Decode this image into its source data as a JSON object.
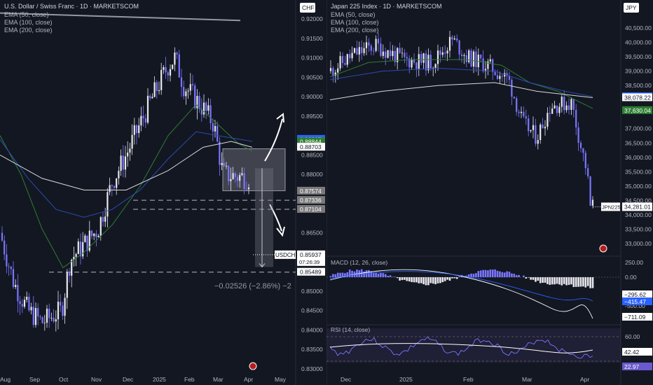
{
  "colors": {
    "bg": "#131722",
    "up": "#e8e8ee",
    "down": "#7b76ff",
    "ema50": "#2e7d32",
    "ema100": "#2c4bb0",
    "ema200": "#d9d9d9",
    "grid": "#1e2230",
    "text": "#b2b5be"
  },
  "chart_data": [
    {
      "type": "candlestick",
      "title": "U.S. Dollar / Swiss Franc · 1D · MARKETSCOM",
      "legend": [
        "EMA (50, close)",
        "EMA (100, close)",
        "EMA (200, close)"
      ],
      "currency": "CHF",
      "ylim": [
        0.83,
        0.925
      ],
      "y_ticks": [
        "0.92000",
        "0.91500",
        "0.91000",
        "0.90500",
        "0.90000",
        "0.89500",
        "0.88500",
        "0.88000",
        "0.86500",
        "0.85000",
        "0.84500",
        "0.84000",
        "0.83500",
        "0.83000"
      ],
      "x_ticks": [
        "Aug",
        "Sep",
        "Oct",
        "Nov",
        "Dec",
        "2025",
        "Feb",
        "Mar",
        "Apr",
        "May"
      ],
      "symbol": "USDCHF",
      "price": 0.85937,
      "price_text": "0.85937",
      "countdown": "07:26:39",
      "measure_text": "−0.02526 (−2.86%) −2",
      "levels": [
        {
          "text": "0.88907",
          "value": 0.88907,
          "color": "#2962ff"
        },
        {
          "text": "0.88844",
          "value": 0.88844,
          "color": "#2e7d32"
        },
        {
          "text": "0.88708",
          "value": 0.88708,
          "color": "#7a7a7a"
        },
        {
          "text": "0.88703",
          "value": 0.88703,
          "color": "#ffffff"
        },
        {
          "text": "0.87574",
          "value": 0.87574,
          "color": "#7a7a7a"
        },
        {
          "text": "0.87336",
          "value": 0.87336,
          "color": "#7a7a7a"
        },
        {
          "text": "0.87104",
          "value": 0.87104,
          "color": "#7a7a7a"
        },
        {
          "text": "0.85489",
          "value": 0.85489,
          "color": "#ffffff"
        }
      ],
      "dashed_levels": [
        0.87336,
        0.87104,
        0.85489
      ],
      "resistance_line": [
        0.9215,
        0.9196
      ],
      "box": [
        0.8758,
        0.8866
      ],
      "target": [
        0.8816,
        0.8562
      ]
    },
    {
      "type": "candlestick",
      "title": "Japan 225 Index · 1D · MARKETSCOM",
      "legend": [
        "EMA (50, close)",
        "EMA (100, close)",
        "EMA (200, close)"
      ],
      "currency": "JPY",
      "ylim": [
        32500,
        41500
      ],
      "y_ticks": [
        "40,500.00",
        "40,000.00",
        "39,500.00",
        "39,000.00",
        "38,500.00",
        "37,000.00",
        "36,500.00",
        "36,000.00",
        "35,500.00",
        "35,000.00",
        "34,500.00",
        "34,000.00",
        "33,500.00",
        "33,000.00"
      ],
      "x_ticks": [
        "Dec",
        "2025",
        "Feb",
        "Mar",
        "Apr"
      ],
      "symbol": "JPN225",
      "price": 34281.01,
      "price_text": "34,281.01",
      "levels": [
        {
          "text": "38,115.59",
          "value": 38115.59,
          "color": "#2962ff"
        },
        {
          "text": "38,078.22",
          "value": 38078.22,
          "color": "#ffffff"
        },
        {
          "text": "37,630.04",
          "value": 37630.04,
          "color": "#2e7d32"
        }
      ],
      "macd": {
        "title": "MACD (12, 26, close)",
        "ticks": [
          "250.00",
          "0.00",
          "-500.00"
        ],
        "levels": [
          {
            "text": "−295.62",
            "color": "#ffffff"
          },
          {
            "text": "−415.47",
            "color": "#2962ff"
          },
          {
            "text": "−711.09",
            "color": "#ffffff"
          }
        ]
      },
      "rsi": {
        "title": "RSI (14, close)",
        "ticks": [
          "60.00"
        ],
        "levels": [
          {
            "text": "42.42",
            "color": "#ffffff"
          },
          {
            "text": "22.97",
            "color": "#6a5acd"
          }
        ]
      }
    }
  ]
}
